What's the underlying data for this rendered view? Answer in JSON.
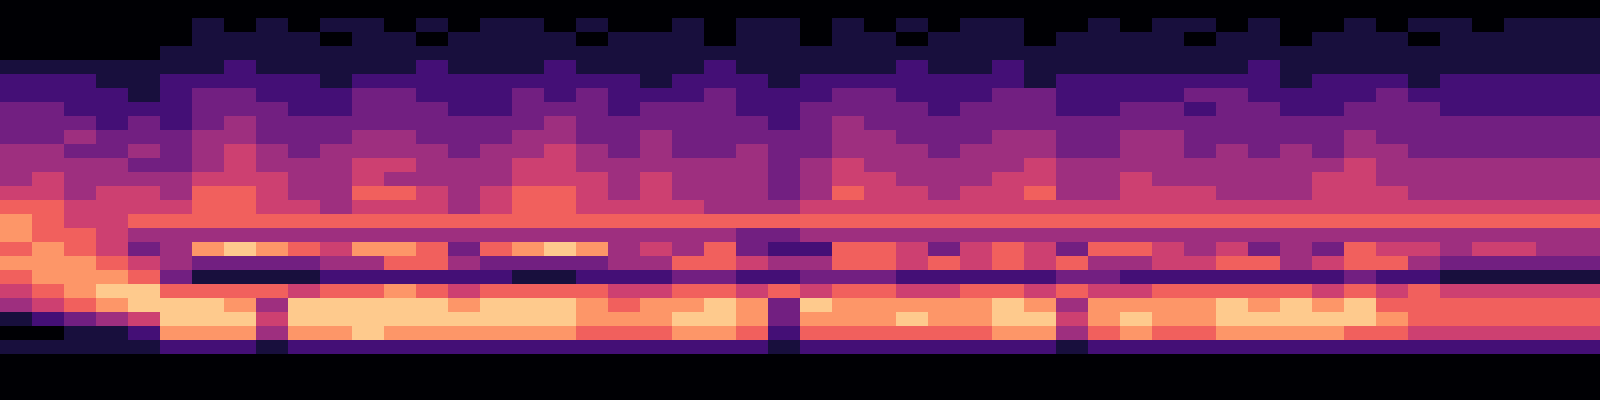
{
  "chart_data": {
    "type": "heatmap",
    "color": "magma",
    "zlim": [
      0,
      9
    ],
    "tick_labels": false,
    "cells": [
      [
        0,
        0,
        0,
        0,
        0,
        0,
        0,
        0,
        0,
        0,
        0,
        0,
        0,
        0,
        0,
        0,
        0,
        0,
        0,
        0,
        0,
        0,
        0,
        0,
        0,
        0,
        0,
        0,
        0,
        0,
        0,
        0,
        0,
        0,
        0,
        0,
        0,
        0,
        0,
        0,
        0,
        0,
        0,
        0,
        0,
        0,
        0,
        0,
        0,
        0
      ],
      [
        0,
        0,
        0,
        0,
        0,
        0,
        1,
        0,
        1,
        0,
        1,
        1,
        0,
        1,
        0,
        1,
        1,
        0,
        1,
        0,
        0,
        1,
        0,
        1,
        1,
        0,
        1,
        0,
        1,
        0,
        1,
        1,
        0,
        0,
        1,
        0,
        1,
        1,
        0,
        1,
        0,
        0,
        1,
        0,
        1,
        1,
        0,
        1,
        1,
        1
      ],
      [
        0,
        0,
        0,
        0,
        0,
        0,
        1,
        1,
        1,
        1,
        0,
        1,
        1,
        0,
        1,
        1,
        1,
        1,
        0,
        1,
        1,
        1,
        0,
        1,
        1,
        0,
        1,
        1,
        0,
        1,
        1,
        1,
        0,
        1,
        1,
        1,
        1,
        0,
        1,
        1,
        0,
        1,
        1,
        1,
        0,
        1,
        1,
        1,
        1,
        1
      ],
      [
        0,
        0,
        0,
        0,
        0,
        1,
        1,
        1,
        1,
        1,
        1,
        1,
        1,
        1,
        1,
        1,
        1,
        1,
        1,
        1,
        1,
        1,
        1,
        1,
        1,
        1,
        1,
        1,
        1,
        1,
        1,
        1,
        1,
        1,
        1,
        1,
        1,
        1,
        1,
        1,
        1,
        1,
        1,
        1,
        1,
        1,
        1,
        1,
        1,
        1
      ],
      [
        1,
        1,
        1,
        1,
        1,
        1,
        1,
        2,
        1,
        1,
        1,
        1,
        1,
        2,
        1,
        1,
        1,
        2,
        1,
        1,
        1,
        1,
        2,
        1,
        1,
        1,
        1,
        1,
        2,
        1,
        1,
        2,
        1,
        1,
        1,
        1,
        1,
        1,
        1,
        2,
        1,
        1,
        1,
        1,
        1,
        1,
        1,
        1,
        1,
        1
      ],
      [
        2,
        2,
        2,
        1,
        1,
        2,
        2,
        2,
        2,
        2,
        1,
        2,
        2,
        2,
        2,
        2,
        2,
        2,
        2,
        2,
        1,
        2,
        2,
        2,
        1,
        2,
        2,
        2,
        2,
        2,
        2,
        2,
        1,
        2,
        2,
        2,
        2,
        2,
        2,
        2,
        1,
        2,
        2,
        2,
        1,
        2,
        2,
        2,
        2,
        2
      ],
      [
        2,
        2,
        2,
        2,
        1,
        2,
        3,
        3,
        2,
        2,
        2,
        3,
        3,
        2,
        2,
        2,
        3,
        2,
        3,
        2,
        2,
        2,
        3,
        2,
        2,
        2,
        3,
        3,
        2,
        2,
        2,
        3,
        3,
        2,
        2,
        2,
        2,
        3,
        3,
        2,
        2,
        2,
        2,
        3,
        2,
        2,
        2,
        2,
        2,
        2
      ],
      [
        3,
        3,
        2,
        2,
        2,
        2,
        3,
        3,
        3,
        2,
        2,
        3,
        3,
        3,
        2,
        2,
        3,
        3,
        3,
        2,
        3,
        3,
        3,
        2,
        2,
        3,
        3,
        3,
        3,
        2,
        3,
        3,
        3,
        2,
        2,
        3,
        3,
        2,
        3,
        3,
        2,
        2,
        3,
        3,
        3,
        2,
        2,
        2,
        2,
        2
      ],
      [
        3,
        3,
        3,
        2,
        3,
        2,
        3,
        4,
        3,
        3,
        3,
        3,
        3,
        3,
        3,
        3,
        3,
        4,
        3,
        3,
        3,
        3,
        3,
        3,
        2,
        3,
        4,
        3,
        3,
        3,
        3,
        3,
        3,
        3,
        3,
        3,
        3,
        3,
        3,
        3,
        3,
        3,
        3,
        3,
        3,
        3,
        3,
        3,
        3,
        3
      ],
      [
        3,
        3,
        4,
        3,
        3,
        3,
        4,
        4,
        3,
        3,
        3,
        4,
        4,
        3,
        3,
        3,
        4,
        4,
        3,
        3,
        4,
        3,
        3,
        3,
        3,
        3,
        4,
        4,
        3,
        3,
        3,
        4,
        4,
        3,
        3,
        4,
        4,
        3,
        3,
        3,
        3,
        3,
        4,
        3,
        3,
        3,
        3,
        3,
        3,
        3
      ],
      [
        4,
        4,
        3,
        3,
        4,
        3,
        4,
        5,
        4,
        3,
        4,
        4,
        4,
        4,
        3,
        4,
        4,
        5,
        4,
        3,
        4,
        3,
        3,
        4,
        3,
        3,
        4,
        4,
        4,
        3,
        4,
        4,
        4,
        3,
        3,
        4,
        4,
        3,
        4,
        3,
        4,
        3,
        4,
        4,
        3,
        3,
        3,
        3,
        3,
        3
      ],
      [
        4,
        4,
        4,
        4,
        3,
        3,
        4,
        5,
        4,
        4,
        4,
        5,
        5,
        4,
        4,
        4,
        5,
        5,
        4,
        4,
        4,
        4,
        4,
        4,
        3,
        4,
        5,
        4,
        4,
        4,
        4,
        4,
        5,
        4,
        4,
        4,
        4,
        4,
        4,
        4,
        4,
        4,
        5,
        4,
        4,
        4,
        4,
        4,
        4,
        4
      ],
      [
        4,
        5,
        4,
        4,
        4,
        4,
        5,
        5,
        5,
        4,
        4,
        5,
        4,
        4,
        4,
        4,
        5,
        5,
        5,
        4,
        5,
        4,
        4,
        4,
        3,
        4,
        5,
        5,
        4,
        4,
        4,
        5,
        5,
        4,
        4,
        5,
        4,
        4,
        4,
        4,
        4,
        5,
        5,
        4,
        4,
        4,
        4,
        4,
        4,
        4
      ],
      [
        5,
        5,
        4,
        5,
        5,
        4,
        6,
        6,
        5,
        4,
        4,
        6,
        6,
        5,
        4,
        5,
        6,
        6,
        5,
        4,
        5,
        4,
        4,
        4,
        3,
        4,
        6,
        5,
        5,
        4,
        5,
        5,
        6,
        4,
        4,
        5,
        5,
        5,
        4,
        4,
        4,
        5,
        5,
        5,
        4,
        4,
        4,
        4,
        4,
        4
      ],
      [
        6,
        6,
        5,
        5,
        5,
        5,
        6,
        6,
        5,
        5,
        4,
        5,
        5,
        5,
        4,
        5,
        6,
        6,
        5,
        5,
        5,
        5,
        4,
        4,
        4,
        5,
        5,
        5,
        5,
        5,
        5,
        5,
        5,
        5,
        5,
        5,
        5,
        5,
        5,
        5,
        5,
        5,
        5,
        5,
        5,
        5,
        5,
        5,
        5,
        5
      ],
      [
        7,
        6,
        5,
        5,
        6,
        6,
        6,
        6,
        6,
        6,
        6,
        6,
        6,
        6,
        6,
        6,
        6,
        6,
        6,
        6,
        6,
        6,
        6,
        6,
        6,
        6,
        6,
        6,
        6,
        6,
        6,
        6,
        6,
        6,
        6,
        6,
        6,
        6,
        6,
        6,
        6,
        6,
        6,
        6,
        6,
        6,
        6,
        6,
        6,
        6
      ],
      [
        7,
        6,
        6,
        5,
        4,
        4,
        4,
        4,
        4,
        4,
        4,
        4,
        4,
        4,
        4,
        4,
        4,
        4,
        4,
        4,
        4,
        4,
        4,
        3,
        3,
        4,
        4,
        4,
        4,
        4,
        4,
        4,
        4,
        4,
        4,
        4,
        4,
        4,
        4,
        4,
        4,
        4,
        4,
        4,
        4,
        4,
        4,
        4,
        4,
        4
      ],
      [
        6,
        7,
        6,
        5,
        3,
        4,
        7,
        8,
        7,
        6,
        5,
        7,
        7,
        6,
        3,
        6,
        7,
        8,
        7,
        4,
        5,
        4,
        6,
        3,
        2,
        2,
        6,
        6,
        5,
        3,
        5,
        6,
        5,
        3,
        6,
        6,
        5,
        4,
        5,
        3,
        4,
        3,
        6,
        5,
        5,
        4,
        5,
        5,
        4,
        4
      ],
      [
        7,
        7,
        7,
        6,
        5,
        4,
        3,
        3,
        3,
        3,
        4,
        4,
        6,
        6,
        4,
        3,
        3,
        3,
        3,
        4,
        4,
        6,
        6,
        5,
        4,
        4,
        6,
        6,
        5,
        6,
        5,
        6,
        5,
        6,
        4,
        4,
        5,
        5,
        6,
        6,
        4,
        5,
        6,
        6,
        4,
        3,
        3,
        3,
        3,
        3
      ],
      [
        6,
        7,
        7,
        7,
        6,
        3,
        1,
        1,
        1,
        1,
        2,
        2,
        2,
        2,
        2,
        2,
        1,
        1,
        2,
        2,
        2,
        3,
        3,
        2,
        2,
        3,
        3,
        3,
        2,
        2,
        2,
        2,
        2,
        3,
        3,
        2,
        2,
        2,
        2,
        2,
        2,
        2,
        3,
        2,
        2,
        1,
        1,
        1,
        1,
        1
      ],
      [
        5,
        6,
        7,
        8,
        8,
        6,
        6,
        6,
        6,
        5,
        6,
        6,
        7,
        6,
        5,
        6,
        6,
        6,
        6,
        5,
        5,
        6,
        6,
        5,
        6,
        5,
        6,
        6,
        5,
        5,
        6,
        6,
        5,
        6,
        5,
        5,
        6,
        6,
        6,
        6,
        6,
        5,
        6,
        5,
        6,
        5,
        5,
        5,
        5,
        5
      ],
      [
        4,
        5,
        6,
        7,
        8,
        8,
        8,
        7,
        4,
        8,
        8,
        8,
        8,
        8,
        7,
        8,
        8,
        8,
        7,
        6,
        7,
        7,
        8,
        7,
        3,
        8,
        7,
        7,
        7,
        7,
        7,
        8,
        7,
        4,
        7,
        7,
        7,
        7,
        8,
        7,
        8,
        7,
        8,
        6,
        6,
        6,
        6,
        6,
        6,
        6
      ],
      [
        1,
        2,
        3,
        4,
        5,
        8,
        8,
        8,
        5,
        8,
        8,
        8,
        8,
        8,
        8,
        8,
        8,
        8,
        7,
        7,
        7,
        8,
        8,
        7,
        3,
        7,
        7,
        7,
        8,
        7,
        7,
        8,
        8,
        5,
        7,
        8,
        7,
        7,
        8,
        8,
        8,
        8,
        8,
        7,
        6,
        6,
        6,
        6,
        6,
        6
      ],
      [
        0,
        0,
        1,
        1,
        2,
        7,
        7,
        7,
        4,
        7,
        7,
        8,
        7,
        7,
        7,
        7,
        7,
        7,
        6,
        6,
        6,
        7,
        7,
        6,
        2,
        6,
        6,
        6,
        6,
        6,
        6,
        7,
        7,
        4,
        6,
        7,
        6,
        6,
        7,
        7,
        7,
        7,
        6,
        6,
        5,
        5,
        5,
        5,
        5,
        5
      ],
      [
        1,
        1,
        1,
        1,
        1,
        2,
        2,
        2,
        1,
        2,
        2,
        2,
        2,
        2,
        2,
        2,
        2,
        2,
        2,
        2,
        2,
        2,
        2,
        2,
        1,
        2,
        2,
        2,
        2,
        2,
        2,
        2,
        2,
        1,
        2,
        2,
        2,
        2,
        2,
        2,
        2,
        2,
        2,
        2,
        2,
        2,
        2,
        2,
        2,
        2
      ],
      [
        0,
        0,
        0,
        0,
        0,
        0,
        0,
        0,
        0,
        0,
        0,
        0,
        0,
        0,
        0,
        0,
        0,
        0,
        0,
        0,
        0,
        0,
        0,
        0,
        0,
        0,
        0,
        0,
        0,
        0,
        0,
        0,
        0,
        0,
        0,
        0,
        0,
        0,
        0,
        0,
        0,
        0,
        0,
        0,
        0,
        0,
        0,
        0,
        0,
        0
      ],
      [
        0,
        0,
        0,
        0,
        0,
        0,
        0,
        0,
        0,
        0,
        0,
        0,
        0,
        0,
        0,
        0,
        0,
        0,
        0,
        0,
        0,
        0,
        0,
        0,
        0,
        0,
        0,
        0,
        0,
        0,
        0,
        0,
        0,
        0,
        0,
        0,
        0,
        0,
        0,
        0,
        0,
        0,
        0,
        0,
        0,
        0,
        0,
        0,
        0,
        0
      ],
      [
        0,
        0,
        0,
        0,
        0,
        0,
        0,
        0,
        0,
        0,
        0,
        0,
        0,
        0,
        0,
        0,
        0,
        0,
        0,
        0,
        0,
        0,
        0,
        0,
        0,
        0,
        0,
        0,
        0,
        0,
        0,
        0,
        0,
        0,
        0,
        0,
        0,
        0,
        0,
        0,
        0,
        0,
        0,
        0,
        0,
        0,
        0,
        0,
        0,
        0
      ]
    ]
  }
}
